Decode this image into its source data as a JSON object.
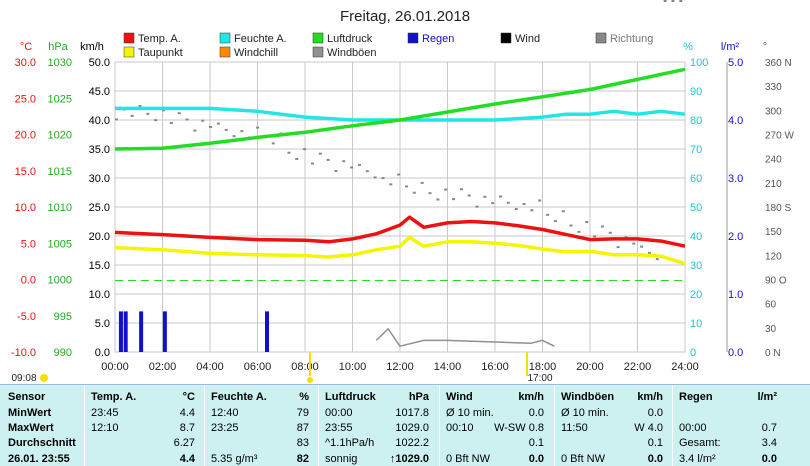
{
  "chart_data": {
    "type": "line",
    "title": "Freitag, 26.01.2018",
    "legend": [
      {
        "name": "Temp. A.",
        "color": "#ee1111"
      },
      {
        "name": "Feuchte A.",
        "color": "#22e6e6"
      },
      {
        "name": "Luftdruck",
        "color": "#22dd22"
      },
      {
        "name": "Regen",
        "color": "#1111cc"
      },
      {
        "name": "Wind",
        "color": "#000000"
      },
      {
        "name": "Richtung",
        "color": "#888888"
      },
      {
        "name": "Taupunkt",
        "color": "#f5f500"
      },
      {
        "name": "Windchill",
        "color": "#ff8800"
      },
      {
        "name": "Windböen",
        "color": "#909090"
      }
    ],
    "x_ticks": [
      "00:00",
      "02:00",
      "04:00",
      "06:00",
      "08:00",
      "10:00",
      "12:00",
      "14:00",
      "16:00",
      "18:00",
      "20:00",
      "22:00",
      "24:00"
    ],
    "axes": {
      "temp": {
        "label": "°C",
        "ticks": [
          "30.0",
          "25.0",
          "20.0",
          "15.0",
          "10.0",
          "5.0",
          "0.0",
          "-5.0",
          "-10.0"
        ],
        "range": [
          -10,
          30
        ],
        "color": "#ee1111"
      },
      "press": {
        "label": "hPa",
        "ticks": [
          "1030",
          "1025",
          "1020",
          "1015",
          "1010",
          "1005",
          "1000",
          "995",
          "990"
        ],
        "range": [
          990,
          1030
        ],
        "color": "#22aa22"
      },
      "wind": {
        "label": "km/h",
        "ticks": [
          "50.0",
          "45.0",
          "40.0",
          "35.0",
          "30.0",
          "25.0",
          "20.0",
          "15.0",
          "10.0",
          "5.0",
          "0.0"
        ],
        "range": [
          0,
          50
        ],
        "color": "#000000"
      },
      "hum": {
        "label": "%",
        "ticks": [
          "100",
          "90",
          "80",
          "70",
          "60",
          "50",
          "40",
          "30",
          "20",
          "10",
          "0"
        ],
        "range": [
          0,
          100
        ],
        "color": "#22c6c6"
      },
      "rain": {
        "label": "l/m²",
        "ticks": [
          "5.0",
          "4.0",
          "3.0",
          "2.0",
          "1.0",
          "0.0"
        ],
        "range": [
          0,
          5
        ],
        "color": "#1111cc"
      },
      "dir": {
        "label": "°",
        "ticks": [
          "360 N",
          "330",
          "300",
          "270 W",
          "240",
          "210",
          "180 S",
          "150",
          "120",
          "90 O",
          "60",
          "30",
          "0 N"
        ],
        "range": [
          0,
          360
        ],
        "color": "#555555"
      }
    },
    "series": [
      {
        "name": "Temp. A.",
        "color": "#ee1111",
        "axis": "temp",
        "x": [
          0,
          2,
          4,
          6,
          8,
          9,
          10,
          11,
          12,
          12.4,
          13,
          14,
          15,
          16,
          17,
          18,
          19,
          20,
          21,
          22,
          23,
          24
        ],
        "y": [
          6.5,
          6.2,
          5.8,
          5.5,
          5.4,
          5.2,
          5.6,
          6.3,
          7.5,
          8.6,
          7.2,
          7.8,
          8.0,
          7.8,
          7.4,
          6.9,
          6.2,
          5.5,
          5.6,
          5.6,
          5.3,
          4.6
        ]
      },
      {
        "name": "Taupunkt",
        "color": "#f5f500",
        "axis": "temp",
        "x": [
          0,
          2,
          4,
          6,
          8,
          9,
          10,
          11,
          12,
          12.4,
          13,
          14,
          15,
          16,
          17,
          18,
          19,
          20,
          21,
          22,
          23,
          24
        ],
        "y": [
          4.4,
          4.1,
          3.6,
          3.4,
          3.3,
          3.1,
          3.4,
          4.1,
          4.6,
          5.8,
          4.6,
          5.2,
          5.2,
          5.0,
          4.7,
          4.2,
          3.8,
          3.9,
          3.4,
          3.4,
          3.2,
          2.2
        ]
      },
      {
        "name": "Feuchte A.",
        "color": "#22e6e6",
        "axis": "hum",
        "x": [
          0,
          2,
          4,
          6,
          8,
          10,
          12,
          13,
          14,
          16,
          18,
          19,
          20,
          21,
          22,
          23,
          24
        ],
        "y": [
          84,
          84,
          84,
          83,
          81,
          80,
          80,
          80,
          80,
          80,
          81,
          82,
          82,
          83,
          82,
          83,
          82
        ]
      },
      {
        "name": "Luftdruck",
        "color": "#22dd22",
        "axis": "press",
        "x": [
          0,
          2,
          4,
          6,
          8,
          10,
          12,
          14,
          16,
          18,
          20,
          22,
          23,
          24
        ],
        "y": [
          1018.0,
          1018.1,
          1018.8,
          1019.6,
          1020.3,
          1021.2,
          1022.0,
          1023.1,
          1024.2,
          1025.2,
          1026.2,
          1027.6,
          1028.3,
          1029.0
        ]
      },
      {
        "name": "Regen",
        "color": "#1111cc",
        "axis": "rain",
        "bars": [
          [
            0.25,
            0.7
          ],
          [
            0.45,
            0.7
          ],
          [
            1.1,
            0.7
          ],
          [
            2.1,
            0.7
          ],
          [
            6.4,
            0.7
          ]
        ]
      },
      {
        "name": "Windböen",
        "color": "#909090",
        "axis": "wind",
        "x": [
          11,
          11.5,
          12,
          13,
          14,
          17.5,
          18,
          18.5
        ],
        "y": [
          2,
          4,
          1,
          2,
          2,
          1.5,
          2,
          1
        ]
      }
    ],
    "time_left": "09:08",
    "time_right": "17:00"
  },
  "table": {
    "rowlabels": [
      "Sensor",
      "MinWert",
      "MaxWert",
      "Durchschnitt",
      "26.01. 23:55"
    ],
    "cols": [
      {
        "title": "Temp. A.",
        "unit": "°C",
        "rows": [
          [
            "23:45",
            "4.4"
          ],
          [
            "12:10",
            "8.7"
          ],
          [
            "",
            "6.27"
          ],
          [
            "",
            "4.4"
          ]
        ]
      },
      {
        "title": "Feuchte A.",
        "unit": "%",
        "rows": [
          [
            "12:40",
            "79"
          ],
          [
            "23:25",
            "87"
          ],
          [
            "",
            "83"
          ],
          [
            "5.35 g/m³",
            "82"
          ]
        ]
      },
      {
        "title": "Luftdruck",
        "unit": "hPa",
        "rows": [
          [
            "00:00",
            "1017.8"
          ],
          [
            "23:55",
            "1029.0"
          ],
          [
            "^1.1hPa/h",
            "1022.2"
          ],
          [
            "sonnig",
            "↑1029.0"
          ]
        ]
      },
      {
        "title": "Wind",
        "unit": "km/h",
        "rows": [
          [
            "Ø 10 min.",
            "0.0"
          ],
          [
            "00:10",
            "W-SW 0.8"
          ],
          [
            "",
            "0.1"
          ],
          [
            "0 Bft NW",
            "0.0"
          ]
        ]
      },
      {
        "title": "Windböen",
        "unit": "km/h",
        "rows": [
          [
            "Ø 10 min.",
            "0.0"
          ],
          [
            "11:50",
            "W 4.0"
          ],
          [
            "",
            "0.1"
          ],
          [
            "0 Bft NW",
            "0.0"
          ]
        ]
      },
      {
        "title": "Regen",
        "unit": "l/m²",
        "rows": [
          [
            "",
            ""
          ],
          [
            "00:00",
            "0.7"
          ],
          [
            "Gesamt:",
            "3.4"
          ],
          [
            "3.4 l/m²",
            "0.0"
          ]
        ]
      }
    ]
  }
}
